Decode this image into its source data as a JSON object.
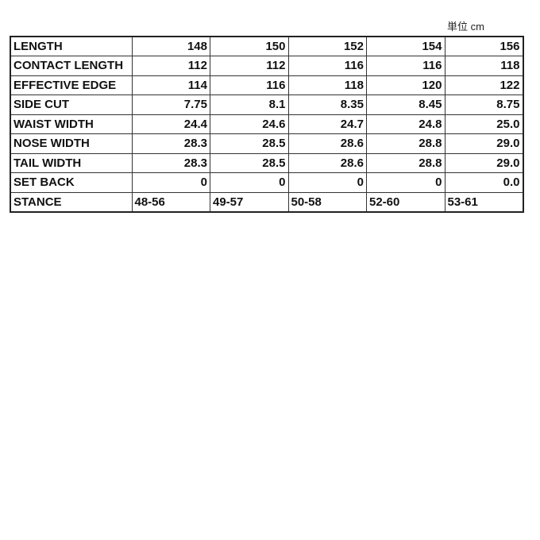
{
  "unit_label": "単位 cm",
  "rows": [
    {
      "label": "LENGTH",
      "values": [
        "148",
        "150",
        "152",
        "154",
        "156"
      ]
    },
    {
      "label": "CONTACT LENGTH",
      "values": [
        "112",
        "112",
        "116",
        "116",
        "118"
      ]
    },
    {
      "label": "EFFECTIVE EDGE",
      "values": [
        "114",
        "116",
        "118",
        "120",
        "122"
      ]
    },
    {
      "label": "SIDE CUT",
      "values": [
        "7.75",
        "8.1",
        "8.35",
        "8.45",
        "8.75"
      ]
    },
    {
      "label": "WAIST WIDTH",
      "values": [
        "24.4",
        "24.6",
        "24.7",
        "24.8",
        "25.0"
      ]
    },
    {
      "label": "NOSE WIDTH",
      "values": [
        "28.3",
        "28.5",
        "28.6",
        "28.8",
        "29.0"
      ]
    },
    {
      "label": "TAIL WIDTH",
      "values": [
        "28.3",
        "28.5",
        "28.6",
        "28.8",
        "29.0"
      ]
    },
    {
      "label": "SET BACK",
      "values": [
        "0",
        "0",
        "0",
        "0",
        "0.0"
      ]
    },
    {
      "label": "STANCE",
      "values": [
        "48-56",
        "49-57",
        "50-58",
        "52-60",
        "53-61"
      ]
    }
  ]
}
